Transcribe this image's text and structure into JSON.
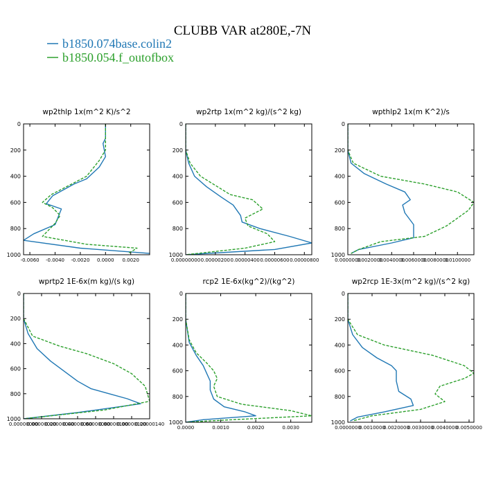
{
  "figure": {
    "title": "CLUBB VAR at280E,-7N",
    "legend": [
      {
        "label": "b1850.074base.colin2",
        "color": "#1f77b4"
      },
      {
        "label": "b1850.054.f_outofbox",
        "color": "#2ca02c"
      }
    ]
  },
  "chart_data": [
    {
      "type": "line",
      "title": "wp2thlp   1x(m^2 K)/s^2",
      "ylim": [
        1000,
        0
      ],
      "yticks": [
        "0",
        "200",
        "400",
        "600",
        "800",
        "1000"
      ],
      "xlim": [
        -0.0065,
        0.0035
      ],
      "xticks": [
        {
          "v": -0.006,
          "t": "-0.0060"
        },
        {
          "v": -0.004,
          "t": "-0.0040"
        },
        {
          "v": -0.002,
          "t": "-0.0020"
        },
        {
          "v": 0.0,
          "t": "0.0000"
        },
        {
          "v": 0.002,
          "t": "0.0020"
        }
      ],
      "series": [
        {
          "name": "b1850.074base.colin2",
          "color": "#1f77b4",
          "dash": "",
          "x": [
            0.0,
            0.0,
            -0.0002,
            0.0,
            -0.0005,
            -0.0015,
            -0.0025,
            -0.0042,
            -0.0047,
            -0.0035,
            -0.004,
            -0.0057,
            -0.0065,
            -0.002,
            0.0035
          ],
          "y": [
            0,
            110,
            150,
            250,
            330,
            420,
            460,
            550,
            610,
            650,
            770,
            840,
            890,
            950,
            990
          ]
        },
        {
          "name": "b1850.054.f_outofbox",
          "color": "#2ca02c",
          "dash": "4,2",
          "x": [
            0.0,
            0.0,
            0.0,
            -0.0005,
            -0.0015,
            -0.0025,
            -0.0043,
            -0.005,
            -0.0042,
            -0.0036,
            -0.004,
            -0.005,
            -0.0015,
            0.0025,
            0.0018
          ],
          "y": [
            0,
            110,
            200,
            280,
            400,
            450,
            540,
            600,
            640,
            700,
            760,
            860,
            920,
            950,
            990
          ]
        }
      ]
    },
    {
      "type": "line",
      "title": "wp2rtp   1x(m^2 kg)/(s^2 kg)",
      "ylim": [
        1000,
        0
      ],
      "yticks": [
        "0",
        "200",
        "400",
        "600",
        "800",
        "1000"
      ],
      "xlim": [
        0.0,
        8.5e-06
      ],
      "xticks": [
        {
          "v": 0.0,
          "t": "0.00000000"
        },
        {
          "v": 2e-06,
          "t": "0.00000200"
        },
        {
          "v": 4e-06,
          "t": "0.00000400"
        },
        {
          "v": 6e-06,
          "t": "0.00000600"
        },
        {
          "v": 8e-06,
          "t": "0.00000800"
        }
      ],
      "series": [
        {
          "name": "b1850.074base.colin2",
          "color": "#1f77b4",
          "dash": "",
          "x": [
            0.0,
            0.0,
            2e-07,
            6e-07,
            1.4e-06,
            2.4e-06,
            3.2e-06,
            3.7e-06,
            3.8e-06,
            5e-06,
            7e-06,
            8.5e-06,
            6e-06,
            0.0
          ],
          "y": [
            0,
            200,
            300,
            400,
            480,
            560,
            620,
            700,
            750,
            800,
            860,
            910,
            960,
            1000
          ]
        },
        {
          "name": "b1850.054.f_outofbox",
          "color": "#2ca02c",
          "dash": "4,2",
          "x": [
            0.0,
            0.0,
            3e-07,
            1e-06,
            2e-06,
            3e-06,
            4.5e-06,
            5.2e-06,
            4e-06,
            4.2e-06,
            5.5e-06,
            6e-06,
            4e-06,
            0.0
          ],
          "y": [
            0,
            200,
            300,
            400,
            470,
            540,
            580,
            650,
            720,
            780,
            840,
            900,
            950,
            1000
          ]
        }
      ]
    },
    {
      "type": "line",
      "title": "wpthlp2   1x(m K^2)/s",
      "ylim": [
        1000,
        0
      ],
      "yticks": [
        "0",
        "200",
        "400",
        "600",
        "800",
        "1000"
      ],
      "xlim": [
        0.0,
        0.0115
      ],
      "xticks": [
        {
          "v": 0.0,
          "t": "0.0000000"
        },
        {
          "v": 0.002,
          "t": "0.0020000"
        },
        {
          "v": 0.004,
          "t": "0.0040000"
        },
        {
          "v": 0.006,
          "t": "0.0060000"
        },
        {
          "v": 0.008,
          "t": "0.0080000"
        },
        {
          "v": 0.01,
          "t": "0.0100000"
        }
      ],
      "series": [
        {
          "name": "b1850.074base.colin2",
          "color": "#1f77b4",
          "dash": "",
          "x": [
            0.0,
            0.0,
            0.0003,
            0.0015,
            0.0035,
            0.0052,
            0.0057,
            0.005,
            0.0052,
            0.006,
            0.006,
            0.004,
            0.001,
            0.0003
          ],
          "y": [
            0,
            200,
            300,
            380,
            460,
            520,
            580,
            620,
            680,
            770,
            870,
            910,
            960,
            990
          ]
        },
        {
          "name": "b1850.054.f_outofbox",
          "color": "#2ca02c",
          "dash": "4,2",
          "x": [
            0.0,
            0.0,
            0.0005,
            0.003,
            0.007,
            0.01,
            0.0115,
            0.011,
            0.01,
            0.009,
            0.007,
            0.003,
            0.001,
            0.0003
          ],
          "y": [
            0,
            200,
            300,
            400,
            460,
            520,
            600,
            660,
            720,
            780,
            860,
            900,
            960,
            990
          ]
        }
      ]
    },
    {
      "type": "line",
      "title": "wprtp2   1E-6x(m kg)/(s kg)",
      "ylim": [
        1000,
        0
      ],
      "yticks": [
        "0",
        "200",
        "400",
        "600",
        "800",
        "1000"
      ],
      "xlim": [
        0.0,
        1.4e-06
      ],
      "xticks": [
        {
          "v": 0.0,
          "t": "0.00000000"
        },
        {
          "v": 2e-07,
          "t": "0.00000020"
        },
        {
          "v": 4e-07,
          "t": "0.00000040"
        },
        {
          "v": 6e-07,
          "t": "0.00000060"
        },
        {
          "v": 8e-07,
          "t": "0.00000080"
        },
        {
          "v": 1e-06,
          "t": "0.00000100"
        },
        {
          "v": 1.2e-06,
          "t": "0.00000120"
        },
        {
          "v": 1.4e-06,
          "t": "0.00000140"
        }
      ],
      "series": [
        {
          "name": "b1850.074base.colin2",
          "color": "#1f77b4",
          "dash": "",
          "x": [
            0.0,
            0.0,
            5e-08,
            1.5e-07,
            3e-07,
            4.5e-07,
            6e-07,
            7.5e-07,
            9.5e-07,
            1.15e-06,
            1.3e-06,
            6e-07,
            0.0
          ],
          "y": [
            0,
            200,
            320,
            440,
            540,
            620,
            700,
            760,
            800,
            840,
            880,
            950,
            1000
          ]
        },
        {
          "name": "b1850.054.f_outofbox",
          "color": "#2ca02c",
          "dash": "4,2",
          "x": [
            0.0,
            0.0,
            1e-07,
            4e-07,
            7e-07,
            1e-06,
            1.2e-06,
            1.35e-06,
            1.4e-06,
            9e-07,
            0.0
          ],
          "y": [
            0,
            200,
            340,
            420,
            480,
            560,
            640,
            740,
            860,
            930,
            1000
          ]
        }
      ]
    },
    {
      "type": "line",
      "title": "rcp2   1E-6x(kg^2)/(kg^2)",
      "ylim": [
        1000,
        0
      ],
      "yticks": [
        "0",
        "200",
        "400",
        "600",
        "800",
        "1000"
      ],
      "xlim": [
        0.0,
        0.0036
      ],
      "xticks": [
        {
          "v": 0.0,
          "t": "0.0000"
        },
        {
          "v": 0.001,
          "t": "0.0010"
        },
        {
          "v": 0.002,
          "t": "0.0020"
        },
        {
          "v": 0.003,
          "t": "0.0030"
        }
      ],
      "series": [
        {
          "name": "b1850.074base.colin2",
          "color": "#1f77b4",
          "dash": "",
          "x": [
            0.0,
            0.0,
            0.0001,
            0.0003,
            0.0005,
            0.0006,
            0.0007,
            0.0007,
            0.0008,
            0.0011,
            0.0017,
            0.002,
            0.0005,
            0.0
          ],
          "y": [
            0,
            200,
            380,
            480,
            560,
            620,
            680,
            750,
            820,
            880,
            920,
            950,
            980,
            1000
          ]
        },
        {
          "name": "b1850.054.f_outofbox",
          "color": "#2ca02c",
          "dash": "4,2",
          "x": [
            0.0,
            0.0,
            0.0001,
            0.0003,
            0.0006,
            0.0008,
            0.0009,
            0.0008,
            0.0009,
            0.0016,
            0.003,
            0.0036,
            0.001,
            0.0
          ],
          "y": [
            0,
            200,
            360,
            460,
            540,
            600,
            660,
            720,
            800,
            860,
            910,
            950,
            985,
            1000
          ]
        }
      ]
    },
    {
      "type": "line",
      "title": "wp2rcp   1E-3x(m^2 kg)/(s^2 kg)",
      "ylim": [
        1000,
        0
      ],
      "yticks": [
        "0",
        "200",
        "400",
        "600",
        "800",
        "1000"
      ],
      "xlim": [
        0.0,
        0.0052
      ],
      "xticks": [
        {
          "v": 0.0,
          "t": "0.0000000"
        },
        {
          "v": 0.001,
          "t": "0.0010000"
        },
        {
          "v": 0.002,
          "t": "0.0020000"
        },
        {
          "v": 0.003,
          "t": "0.0030000"
        },
        {
          "v": 0.004,
          "t": "0.0040000"
        },
        {
          "v": 0.005,
          "t": "0.0050000"
        }
      ],
      "series": [
        {
          "name": "b1850.074base.colin2",
          "color": "#1f77b4",
          "dash": "",
          "x": [
            0.0,
            0.0,
            0.0002,
            0.0006,
            0.0012,
            0.0018,
            0.002,
            0.002,
            0.0021,
            0.0026,
            0.0027,
            0.0015,
            0.0004,
            0.0001
          ],
          "y": [
            0,
            200,
            320,
            420,
            500,
            560,
            600,
            680,
            760,
            820,
            870,
            920,
            960,
            990
          ]
        },
        {
          "name": "b1850.054.f_outofbox",
          "color": "#2ca02c",
          "dash": "4,2",
          "x": [
            0.0,
            0.0,
            0.0004,
            0.0015,
            0.0035,
            0.0048,
            0.0052,
            0.0048,
            0.0038,
            0.0036,
            0.004,
            0.003,
            0.001,
            0.0002
          ],
          "y": [
            0,
            200,
            320,
            400,
            480,
            560,
            620,
            660,
            720,
            780,
            840,
            900,
            950,
            990
          ]
        }
      ]
    }
  ]
}
